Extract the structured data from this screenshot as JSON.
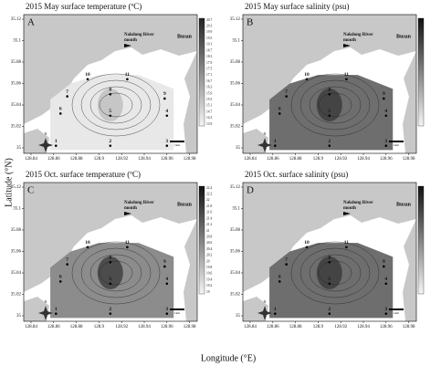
{
  "axes": {
    "y_label": "Latitude (°N)",
    "x_label": "Longitude (°E)",
    "lat_ticks": [
      35.12,
      35.1,
      35.08,
      35.06,
      35.04,
      35.02,
      35
    ],
    "lon_ticks": [
      128.84,
      128.86,
      128.88,
      128.9,
      128.92,
      128.94,
      128.96,
      128.98
    ]
  },
  "places": {
    "river": [
      "Nakdong River",
      "mouth"
    ],
    "city": "Busan",
    "scale": "1km",
    "north": "N"
  },
  "panels": [
    {
      "letter": "A",
      "title": "2015 May surface temperature (ºC)",
      "shade": "light",
      "colorbar": [
        "20.7",
        "20.3",
        "19.9",
        "19.5",
        "19.1",
        "18.7",
        "18.3",
        "17.9",
        "17.5",
        "17.1",
        "16.7",
        "16.3",
        "15.9",
        "15.5",
        "15.1",
        "14.7",
        "14.3",
        "13.9"
      ]
    },
    {
      "letter": "B",
      "title": "2015 May surface salinity (psu)",
      "shade": "dark",
      "colorbar": []
    },
    {
      "letter": "C",
      "title": "2015 Oct. surface temperature (ºC)",
      "shade": "mid",
      "colorbar": [
        "22.4",
        "22.2",
        "22",
        "21.8",
        "21.6",
        "21.4",
        "21.2",
        "21",
        "20.8",
        "20.6",
        "20.4",
        "20.2",
        "20",
        "19.8",
        "19.6",
        "19.4",
        "19.2",
        "19"
      ]
    },
    {
      "letter": "D",
      "title": "2015 Oct. surface salinity (psu)",
      "shade": "dark",
      "colorbar": []
    }
  ],
  "stations": [
    {
      "label": "1",
      "lon": 128.862,
      "lat": 35.002
    },
    {
      "label": "2",
      "lon": 128.91,
      "lat": 35.002
    },
    {
      "label": "3",
      "lon": 128.96,
      "lat": 35.002
    },
    {
      "label": "4",
      "lon": 128.96,
      "lat": 35.03
    },
    {
      "label": "5",
      "lon": 128.91,
      "lat": 35.03
    },
    {
      "label": "6",
      "lon": 128.866,
      "lat": 35.032
    },
    {
      "label": "7",
      "lon": 128.872,
      "lat": 35.048
    },
    {
      "label": "8",
      "lon": 128.91,
      "lat": 35.05
    },
    {
      "label": "9",
      "lon": 128.958,
      "lat": 35.046
    },
    {
      "label": "10",
      "lon": 128.89,
      "lat": 35.064
    },
    {
      "label": "11",
      "lon": 128.925,
      "lat": 35.064
    }
  ]
}
